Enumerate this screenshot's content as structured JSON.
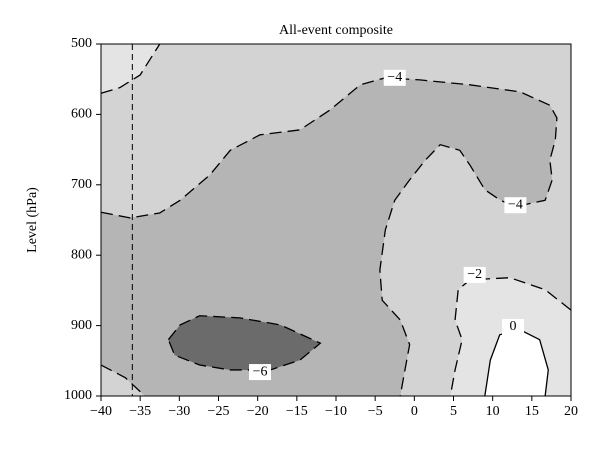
{
  "chart_data": {
    "type": "contour",
    "title": "All-event composite",
    "ylabel": "Level (hPa)",
    "xlim": [
      -40,
      20
    ],
    "ylim": [
      1000,
      500
    ],
    "xticks": [
      {
        "value": -40,
        "label": "−40"
      },
      {
        "value": -35,
        "label": "−35"
      },
      {
        "value": -30,
        "label": "−30"
      },
      {
        "value": -25,
        "label": "−25"
      },
      {
        "value": -20,
        "label": "−20"
      },
      {
        "value": -15,
        "label": "−15"
      },
      {
        "value": -10,
        "label": "−10"
      },
      {
        "value": -5,
        "label": "−5"
      },
      0,
      5,
      10,
      15,
      20
    ],
    "yticks": [
      500,
      600,
      700,
      800,
      900,
      1000
    ],
    "background_color": "#d3d3d3",
    "regions": [
      {
        "color": "#e4e4e4",
        "x": [
          -40,
          -37.6,
          -35,
          -32.5,
          -40
        ],
        "y": [
          570,
          562,
          544,
          500,
          500
        ]
      },
      {
        "color": "#b5b5b5",
        "x": [
          -40,
          -36.3,
          -32.5,
          -29.9,
          -26.1,
          -23.5,
          -19.7,
          -14.6,
          -10.8,
          -6.9,
          -3.7,
          0.7,
          7.1,
          13.5,
          17.3,
          18.2,
          18,
          17.3,
          17.6,
          16.7,
          12.9,
          11,
          9,
          7.1,
          5.8,
          3.3,
          1.4,
          -0.6,
          -2.5,
          -3.7,
          -4.4,
          -4.1,
          -1.8,
          -0.6,
          -1.2,
          -1.8,
          -34.4,
          -36.9,
          -40
        ],
        "y": [
          739,
          747,
          740,
          722,
          686,
          651,
          629,
          622,
          594,
          558,
          548,
          551,
          558,
          568,
          587,
          605,
          636,
          665,
          693,
          722,
          731,
          722,
          707,
          672,
          651,
          643,
          665,
          693,
          722,
          764,
          821,
          864,
          892,
          927,
          963,
          1000,
          1000,
          974,
          956
        ]
      },
      {
        "color": "#e4e4e4",
        "x": [
          20,
          16.7,
          12.2,
          7.1,
          5.6,
          5.2,
          6.1,
          5.2,
          4.6,
          20
        ],
        "y": [
          878,
          849,
          832,
          835,
          849,
          892,
          920,
          963,
          1000,
          1000
        ]
      },
      {
        "color": "#ffffff",
        "x": [
          9,
          9.7,
          10.9,
          13.5,
          16,
          17.1,
          16.7
        ],
        "y": [
          1000,
          949,
          913,
          906,
          920,
          963,
          1000
        ]
      },
      {
        "color": "#6b6b6b",
        "x": [
          -31.4,
          -29.9,
          -27.4,
          -22.3,
          -17.1,
          -12,
          -14.6,
          -18.4,
          -23.5,
          -27.4,
          -30.6
        ],
        "y": [
          920,
          899,
          886,
          889,
          899,
          925,
          949,
          963,
          963,
          956,
          942
        ]
      }
    ],
    "contours": [
      {
        "level": -4,
        "x": [
          -40,
          -36.3,
          -32.5,
          -29.9,
          -26.1,
          -23.5,
          -19.7,
          -14.6,
          -10.8,
          -6.9,
          -3.7,
          0.7,
          7.1,
          13.5,
          17.3,
          18.2,
          18,
          17.3,
          17.6,
          16.7,
          12.9,
          11,
          9,
          7.1,
          5.8,
          3.3,
          1.4,
          -0.6,
          -2.5,
          -3.7,
          -4.4,
          -4.1,
          -1.8,
          -0.6,
          -1.2,
          -1.8
        ],
        "y": [
          739,
          747,
          740,
          722,
          686,
          651,
          629,
          622,
          594,
          558,
          548,
          551,
          558,
          568,
          587,
          605,
          636,
          665,
          693,
          722,
          731,
          722,
          707,
          672,
          651,
          643,
          665,
          693,
          722,
          764,
          821,
          864,
          892,
          927,
          963,
          1000
        ]
      },
      {
        "level": -4,
        "x": [
          -40,
          -36.9,
          -34.4
        ],
        "y": [
          956,
          974,
          1000
        ]
      },
      {
        "level": -4,
        "x": [
          -40,
          -37.6,
          -35,
          -32.5
        ],
        "y": [
          570,
          562,
          544,
          500
        ]
      },
      {
        "level": -2,
        "x": [
          20,
          16.7,
          12.2,
          7.1,
          5.6,
          5.2,
          6.1,
          5.2,
          4.6
        ],
        "y": [
          878,
          849,
          832,
          835,
          849,
          892,
          920,
          963,
          1000
        ]
      },
      {
        "level": 0,
        "x": [
          9,
          9.7,
          10.9,
          13.5,
          16,
          17.1,
          16.7
        ],
        "y": [
          1000,
          949,
          913,
          906,
          920,
          963,
          1000
        ]
      },
      {
        "level": -6,
        "x": [
          -31.4,
          -29.9,
          -27.4,
          -22.3,
          -17.1,
          -12,
          -14.6,
          -18.4,
          -23.5,
          -27.4,
          -30.6,
          -31.4
        ],
        "y": [
          920,
          899,
          886,
          889,
          899,
          925,
          949,
          963,
          963,
          956,
          942,
          920
        ]
      }
    ],
    "contour_labels": [
      {
        "value": -4,
        "label": "−4",
        "x": -2.5,
        "y": 548
      },
      {
        "value": -4,
        "label": "−4",
        "x": 12.9,
        "y": 729
      },
      {
        "value": -2,
        "label": "−2",
        "x": 7.7,
        "y": 828
      },
      {
        "value": 0,
        "x": 12.6,
        "y": 902
      },
      {
        "value": -6,
        "label": "−6",
        "x": -19.7,
        "y": 966
      }
    ],
    "reference_x": -36
  }
}
